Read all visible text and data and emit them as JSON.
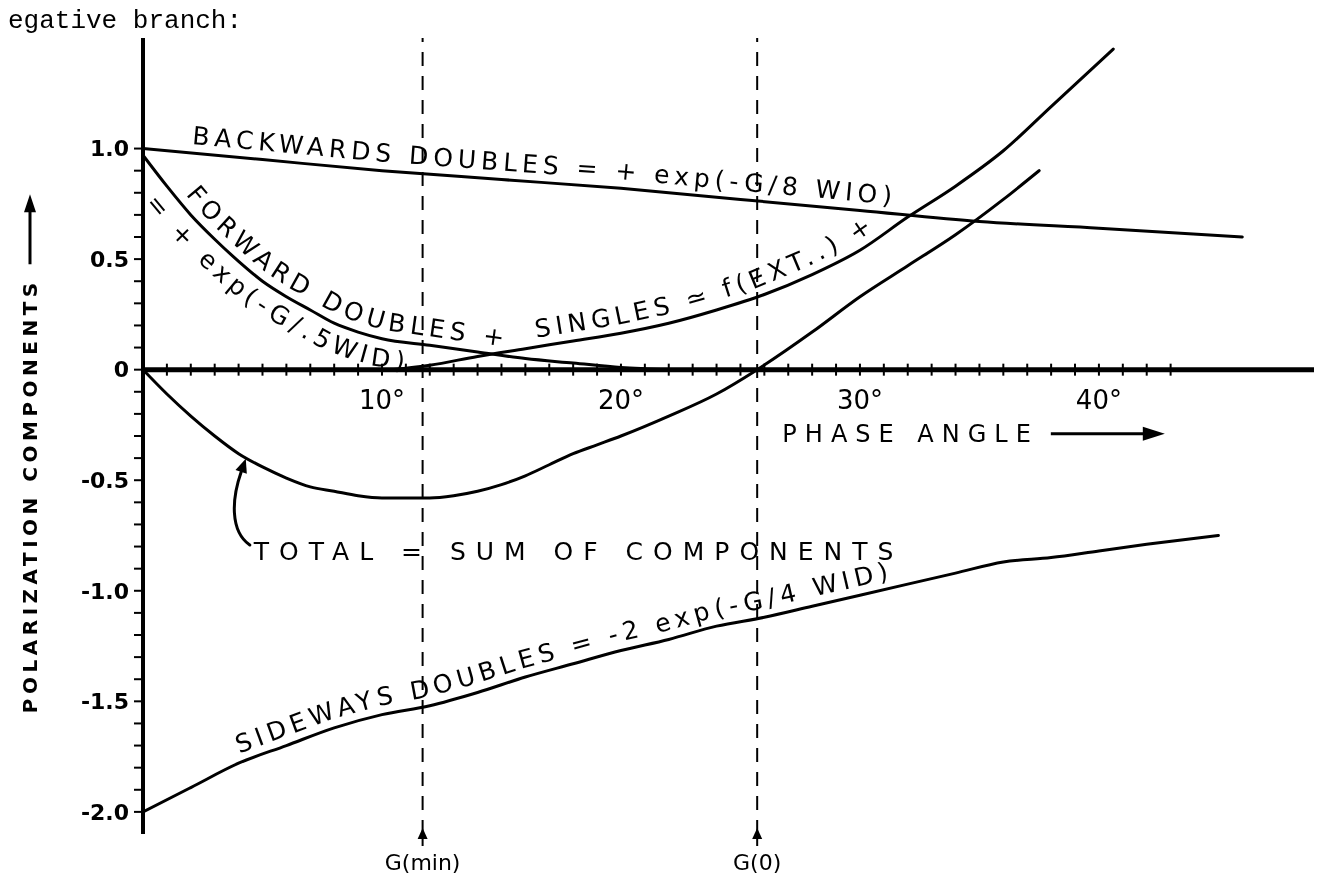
{
  "chart_data": {
    "type": "line",
    "xlabel": "PHASE ANGLE",
    "ylabel": "POLARIZATION COMPONENTS",
    "annotations": [
      "egative branch:",
      {
        "text": "BACKWARDS DOUBLES = + exp(-G/8 WIO)",
        "x": 2,
        "y": 0.98
      },
      {
        "text": "FORWARD DOUBLES +\n= + exp(-G/.5WID)",
        "x": 1,
        "y": 0.83
      },
      {
        "text": "SINGLES ≃ f(EXT..) +",
        "x": 16.5,
        "y": 0.1
      },
      "TOTAL = SUM OF COMPONENTS",
      {
        "text": "SIDEWAYS DOUBLES = -2 exp(-G/4 WID)",
        "x": 4.2,
        "y": -1.77
      }
    ],
    "series": [
      {
        "color": "#000000",
        "x": [
          0,
          5,
          10,
          15,
          20,
          25,
          30,
          35,
          40,
          46
        ],
        "values": [
          1.0,
          0.95,
          0.9,
          0.86,
          0.82,
          0.77,
          0.72,
          0.67,
          0.64,
          0.6
        ]
      },
      {
        "color": "#000000",
        "x": [
          0,
          1,
          2,
          3,
          4,
          5,
          6,
          7,
          8,
          9,
          10,
          12,
          14,
          16,
          18,
          20,
          22
        ],
        "values": [
          0.97,
          0.83,
          0.7,
          0.59,
          0.49,
          0.4,
          0.33,
          0.27,
          0.21,
          0.17,
          0.14,
          0.11,
          0.08,
          0.05,
          0.03,
          0.01,
          0
        ]
      },
      {
        "color": "#000000",
        "x": [
          10.4,
          12,
          14,
          16,
          18,
          20,
          22,
          24,
          26,
          28,
          30,
          32,
          34,
          36,
          38,
          40.6
        ],
        "values": [
          0,
          0.02,
          0.06,
          0.095,
          0.13,
          0.165,
          0.21,
          0.27,
          0.34,
          0.43,
          0.54,
          0.69,
          0.83,
          0.99,
          1.19,
          1.45
        ]
      },
      {
        "color": "#000000",
        "x": [
          0,
          1,
          2,
          3,
          4,
          5,
          6,
          7,
          8,
          9,
          10,
          11,
          12,
          13,
          14,
          15,
          16,
          17,
          18,
          19,
          20,
          22,
          24,
          25.7,
          28,
          30,
          32,
          34,
          36,
          37.5
        ],
        "values": [
          0,
          -0.11,
          -0.21,
          -0.3,
          -0.38,
          -0.44,
          -0.49,
          -0.53,
          -0.55,
          -0.57,
          -0.58,
          -0.58,
          -0.58,
          -0.57,
          -0.55,
          -0.52,
          -0.48,
          -0.43,
          -0.38,
          -0.34,
          -0.3,
          -0.21,
          -0.11,
          0,
          0.17,
          0.33,
          0.47,
          0.61,
          0.77,
          0.9
        ]
      },
      {
        "color": "#000000",
        "x": [
          0,
          2,
          4,
          6,
          8,
          10,
          12,
          14,
          16,
          18,
          20,
          22,
          24,
          26,
          28,
          30,
          32,
          34,
          36,
          38,
          40,
          42,
          45
        ],
        "values": [
          -2,
          -1.89,
          -1.78,
          -1.7,
          -1.62,
          -1.56,
          -1.52,
          -1.46,
          -1.39,
          -1.33,
          -1.27,
          -1.22,
          -1.16,
          -1.12,
          -1.07,
          -1.02,
          -0.97,
          -0.92,
          -0.87,
          -0.85,
          -0.82,
          -0.79,
          -0.75
        ]
      }
    ],
    "xlim": [
      0,
      49
    ],
    "ylim": [
      -2.1,
      1.5
    ],
    "xticks": [
      {
        "value": 1,
        "label": null
      },
      {
        "value": 2,
        "label": null
      },
      {
        "value": 3,
        "label": null
      },
      {
        "value": 4,
        "label": null
      },
      {
        "value": 5,
        "label": null
      },
      {
        "value": 6,
        "label": null
      },
      {
        "value": 7,
        "label": null
      },
      {
        "value": 8,
        "label": null
      },
      {
        "value": 9,
        "label": null
      },
      {
        "value": 10,
        "label": "10°"
      },
      {
        "value": 11,
        "label": null
      },
      {
        "value": 12,
        "label": null
      },
      {
        "value": 13,
        "label": null
      },
      {
        "value": 14,
        "label": null
      },
      {
        "value": 15,
        "label": null
      },
      {
        "value": 16,
        "label": null
      },
      {
        "value": 17,
        "label": null
      },
      {
        "value": 18,
        "label": null
      },
      {
        "value": 19,
        "label": null
      },
      {
        "value": 20,
        "label": "20°"
      },
      {
        "value": 21,
        "label": null
      },
      {
        "value": 22,
        "label": null
      },
      {
        "value": 23,
        "label": null
      },
      {
        "value": 24,
        "label": null
      },
      {
        "value": 25,
        "label": null
      },
      {
        "value": 26,
        "label": null
      },
      {
        "value": 27,
        "label": null
      },
      {
        "value": 28,
        "label": null
      },
      {
        "value": 29,
        "label": null
      },
      {
        "value": 30,
        "label": "30°"
      },
      {
        "value": 31,
        "label": null
      },
      {
        "value": 32,
        "label": null
      },
      {
        "value": 33,
        "label": null
      },
      {
        "value": 34,
        "label": null
      },
      {
        "value": 35,
        "label": null
      },
      {
        "value": 36,
        "label": null
      },
      {
        "value": 37,
        "label": null
      },
      {
        "value": 38,
        "label": null
      },
      {
        "value": 39,
        "label": null
      },
      {
        "value": 40,
        "label": "40°"
      },
      {
        "value": 41,
        "label": null
      },
      {
        "value": 42,
        "label": null
      },
      {
        "value": 43,
        "label": null
      }
    ],
    "yticks": [
      {
        "value": -2,
        "label": "-2.0"
      },
      {
        "value": -1.9,
        "label": null
      },
      {
        "value": -1.8,
        "label": null
      },
      {
        "value": -1.7,
        "label": null
      },
      {
        "value": -1.6,
        "label": null
      },
      -1.5,
      {
        "value": -1.4,
        "label": null
      },
      {
        "value": -1.3,
        "label": null
      },
      {
        "value": -1.2,
        "label": null
      },
      {
        "value": -1.1,
        "label": null
      },
      {
        "value": -1,
        "label": "-1.0"
      },
      {
        "value": -0.9,
        "label": null
      },
      {
        "value": -0.8,
        "label": null
      },
      {
        "value": -0.7,
        "label": null
      },
      {
        "value": -0.6,
        "label": null
      },
      -0.5,
      {
        "value": -0.4,
        "label": null
      },
      {
        "value": -0.3,
        "label": null
      },
      {
        "value": -0.2,
        "label": null
      },
      {
        "value": -0.1,
        "label": null
      },
      0,
      {
        "value": 0.1,
        "label": null
      },
      {
        "value": 0.2,
        "label": null
      },
      {
        "value": 0.3,
        "label": null
      },
      {
        "value": 0.4,
        "label": null
      },
      0.5,
      {
        "value": 0.6,
        "label": null
      },
      {
        "value": 0.7,
        "label": null
      },
      {
        "value": 0.8,
        "label": null
      },
      {
        "value": 0.9,
        "label": null
      },
      {
        "value": 1,
        "label": "1.0"
      }
    ],
    "ref_lines": [
      {
        "axis": "x",
        "value": 11.7,
        "label": "G(min)",
        "color": "#000000",
        "line_style": "dashed"
      },
      {
        "axis": "x",
        "value": 25.7,
        "label": "G(0)",
        "color": "#000000",
        "line_style": "dashed"
      }
    ]
  }
}
